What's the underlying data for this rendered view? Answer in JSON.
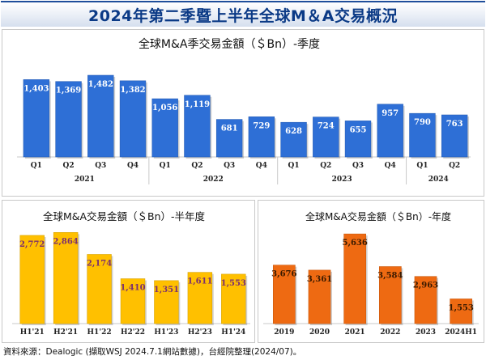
{
  "page": {
    "title": "2024年第二季暨上半年全球M＆A交易概況",
    "footer": "資料來源：Dealogic (擷取WSJ 2024.7.1網站數據)，台經院整理(2024/07)。"
  },
  "chart_data": [
    {
      "id": "quarterly",
      "type": "bar",
      "title": "全球M&A季交易金額（＄Bn）-季度",
      "categories": [
        "Q1",
        "Q2",
        "Q3",
        "Q4",
        "Q1",
        "Q2",
        "Q3",
        "Q4",
        "Q1",
        "Q2",
        "Q3",
        "Q4",
        "Q1",
        "Q2"
      ],
      "values": [
        1403,
        1369,
        1482,
        1382,
        1056,
        1119,
        681,
        729,
        628,
        724,
        655,
        957,
        790,
        763
      ],
      "value_labels": [
        "1,403",
        "1,369",
        "1,482",
        "1,382",
        "1,056",
        "1,119",
        "681",
        "729",
        "628",
        "724",
        "655",
        "957",
        "790",
        "763"
      ],
      "year_groups": [
        {
          "label": "2021",
          "span": 4
        },
        {
          "label": "2022",
          "span": 4
        },
        {
          "label": "2023",
          "span": 4
        },
        {
          "label": "2024",
          "span": 2
        }
      ],
      "color": "#2e6fd6",
      "label_color": "#ffffff",
      "ylim": [
        0,
        1600
      ]
    },
    {
      "id": "half",
      "type": "bar",
      "title": "全球M&A交易金額（＄Bn）-半年度",
      "categories": [
        "H1'21",
        "H2'21",
        "H1'22",
        "H2'22",
        "H1'23",
        "H2'23",
        "H1'24"
      ],
      "values": [
        2772,
        2864,
        2174,
        1410,
        1351,
        1611,
        1553
      ],
      "value_labels": [
        "2,772",
        "2,864",
        "2,174",
        "1,410",
        "1,351",
        "1,611",
        "1,553"
      ],
      "color": "#ffc000",
      "label_color": "#7b2f6e",
      "ylim": [
        0,
        3000
      ]
    },
    {
      "id": "annual",
      "type": "bar",
      "title": "全球M&A交易金額（＄Bn）-年度",
      "categories": [
        "2019",
        "2020",
        "2021",
        "2022",
        "2023",
        "2024H1"
      ],
      "values": [
        3676,
        3361,
        5636,
        3584,
        2963,
        1553
      ],
      "value_labels": [
        "3,676",
        "3,361",
        "5,636",
        "3,584",
        "2,963",
        "1,553"
      ],
      "color": "#ee6a12",
      "label_color": "#3a1a00",
      "ylim": [
        0,
        6000
      ]
    }
  ]
}
